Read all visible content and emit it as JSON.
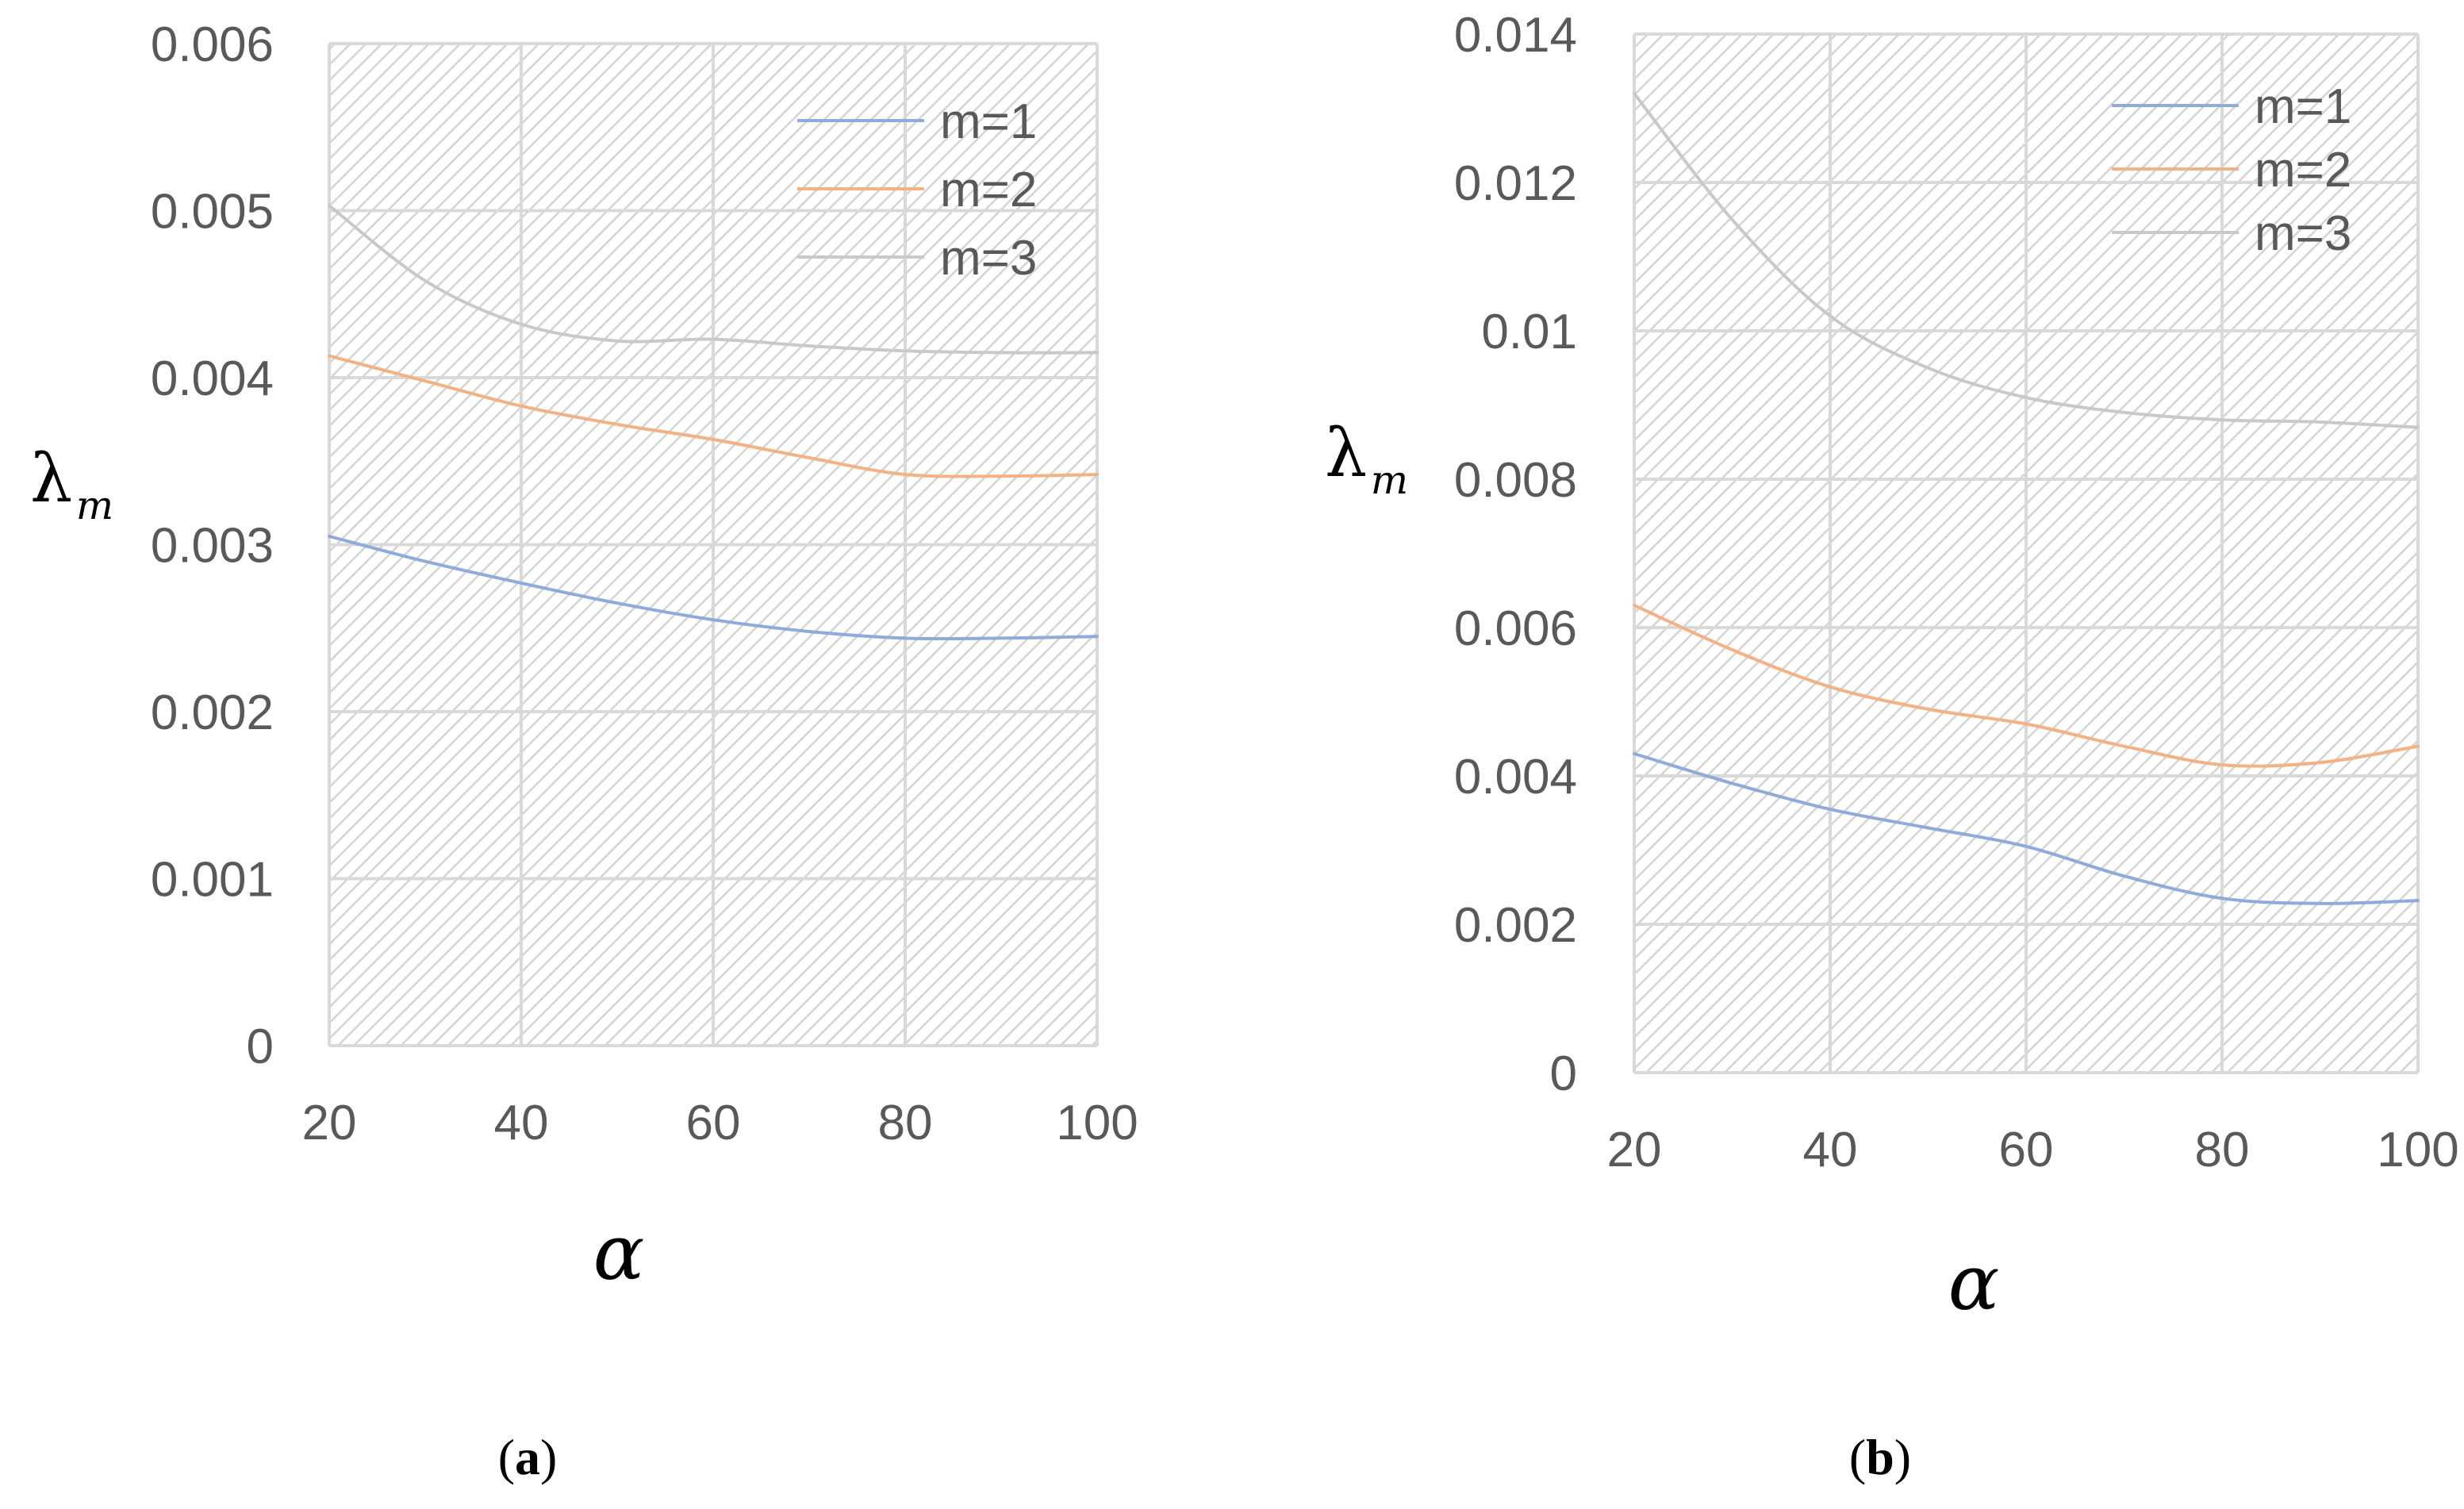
{
  "chart_data": [
    {
      "type": "line",
      "panel": "a",
      "panel_label": "a",
      "xlabel": "α",
      "ylabel": "λ",
      "ylabel_sub": "m",
      "xlim": [
        20,
        100
      ],
      "ylim": [
        0,
        0.006
      ],
      "x_ticks": [
        "20",
        "40",
        "60",
        "80",
        "100"
      ],
      "y_ticks": [
        "0",
        "0.001",
        "0.002",
        "0.003",
        "0.004",
        "0.005",
        "0.006"
      ],
      "legend_position": "top-right",
      "x": [
        20,
        30,
        40,
        50,
        60,
        70,
        80,
        90,
        100
      ],
      "series": [
        {
          "name": "m=1",
          "color": "#8faadc",
          "values": [
            0.00305,
            0.0029,
            0.00277,
            0.00265,
            0.00255,
            0.00248,
            0.00244,
            0.00244,
            0.00245
          ]
        },
        {
          "name": "m=2",
          "color": "#f4b183",
          "values": [
            0.00413,
            0.00398,
            0.00383,
            0.00372,
            0.00363,
            0.00352,
            0.00342,
            0.00341,
            0.00342
          ]
        },
        {
          "name": "m=3",
          "color": "#c9c9c9",
          "values": [
            0.00503,
            0.00458,
            0.00432,
            0.00422,
            0.00423,
            0.00419,
            0.00416,
            0.00415,
            0.00415
          ]
        }
      ]
    },
    {
      "type": "line",
      "panel": "b",
      "panel_label": "b",
      "xlabel": "α",
      "ylabel": "λ",
      "ylabel_sub": "m",
      "xlim": [
        20,
        100
      ],
      "ylim": [
        0,
        0.014
      ],
      "x_ticks": [
        "20",
        "40",
        "60",
        "80",
        "100"
      ],
      "y_ticks": [
        "0",
        "0.002",
        "0.004",
        "0.006",
        "0.008",
        "0.01",
        "0.012",
        "0.014"
      ],
      "legend_position": "top-right",
      "x": [
        20,
        30,
        40,
        50,
        60,
        70,
        80,
        90,
        100
      ],
      "series": [
        {
          "name": "m=1",
          "color": "#8faadc",
          "values": [
            0.0043,
            0.0039,
            0.00355,
            0.0033,
            0.00305,
            0.00265,
            0.00235,
            0.00228,
            0.00232
          ]
        },
        {
          "name": "m=2",
          "color": "#f4b183",
          "values": [
            0.0063,
            0.0057,
            0.0052,
            0.0049,
            0.0047,
            0.0044,
            0.00415,
            0.00418,
            0.0044
          ]
        },
        {
          "name": "m=3",
          "color": "#c9c9c9",
          "values": [
            0.0132,
            0.0115,
            0.0102,
            0.0095,
            0.0091,
            0.0089,
            0.0088,
            0.00877,
            0.0087
          ]
        }
      ]
    }
  ]
}
